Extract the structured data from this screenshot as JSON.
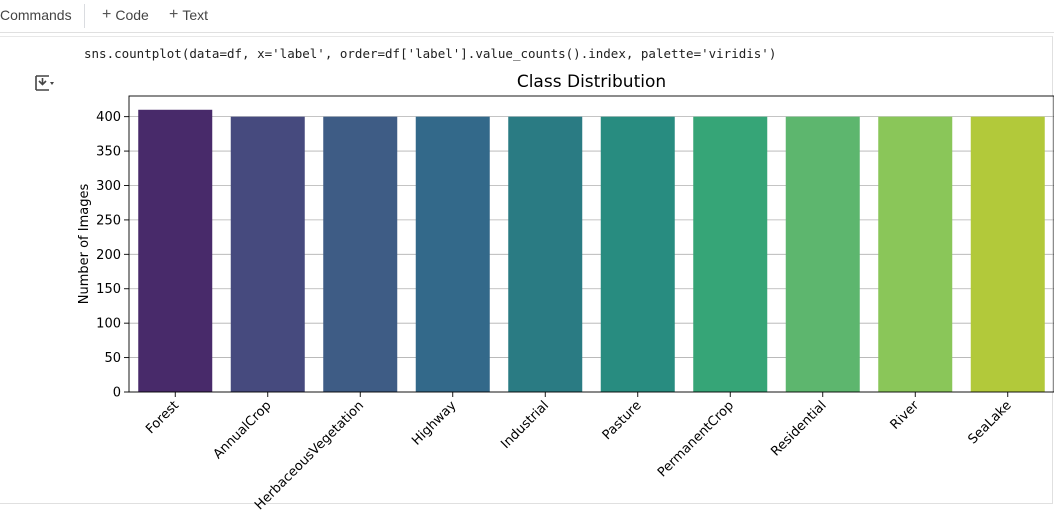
{
  "toolbar": {
    "commands_label": "Commands",
    "code_label": "Code",
    "text_label": "Text"
  },
  "cell": {
    "code": "sns.countplot(data=df, x='label', order=df['label'].value_counts().index, palette='viridis')",
    "output_icon": "output-toggle-icon"
  },
  "chart_data": {
    "type": "bar",
    "title": "Class Distribution",
    "xlabel": "",
    "ylabel": "Number of Images",
    "categories": [
      "Forest",
      "AnnualCrop",
      "HerbaceousVegetation",
      "Highway",
      "Industrial",
      "Pasture",
      "PermanentCrop",
      "Residential",
      "River",
      "SeaLake"
    ],
    "values": [
      410,
      400,
      400,
      400,
      400,
      400,
      400,
      400,
      400,
      400
    ],
    "yticks": [
      0,
      50,
      100,
      150,
      200,
      250,
      300,
      350,
      400
    ],
    "ylim": [
      0,
      430
    ],
    "grid": true,
    "palette": "viridis",
    "colors": [
      "#482a6a",
      "#464a7e",
      "#3e5c85",
      "#33698a",
      "#2a7b83",
      "#288c80",
      "#36a577",
      "#5db66e",
      "#8ac659",
      "#b2c93a"
    ]
  }
}
